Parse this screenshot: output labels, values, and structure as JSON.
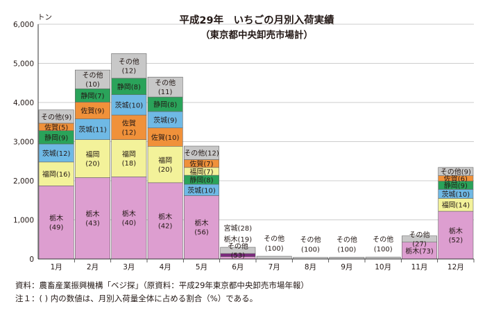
{
  "chart_data": {
    "type": "bar",
    "stacked": true,
    "title": "平成29年　いちごの月別入荷実績",
    "subtitle": "（東京都中央卸売市場計）",
    "ylabel": "トン",
    "xlabel": "",
    "ylim": [
      0,
      6000
    ],
    "yticks": [
      "0",
      "1,000",
      "2,000",
      "3,000",
      "4,000",
      "5,000",
      "6,000"
    ],
    "grid": true,
    "colors": {
      "栃木": "#dd9ed0",
      "福岡": "#f3f29a",
      "茨城": "#6fb9e5",
      "静岡": "#2aa35a",
      "佐賀": "#f0913a",
      "宮城": "#7b2a7e",
      "その他": "#c8c8c8"
    },
    "categories": [
      "1月",
      "2月",
      "3月",
      "4月",
      "5月",
      "6月",
      "7月",
      "8月",
      "9月",
      "10月",
      "11月",
      "12月"
    ],
    "stacks": [
      {
        "month": "1月",
        "segments": [
          {
            "name": "栃木",
            "value": 1870,
            "label": [
              "栃木",
              "(49)"
            ]
          },
          {
            "name": "福岡",
            "value": 610,
            "label": [
              "福岡(16)"
            ]
          },
          {
            "name": "茨城",
            "value": 460,
            "label": [
              "茨城(12)"
            ]
          },
          {
            "name": "静岡",
            "value": 340,
            "label": [
              "静岡(9)"
            ]
          },
          {
            "name": "佐賀",
            "value": 190,
            "label": [
              "佐賀(5)"
            ]
          },
          {
            "name": "その他",
            "value": 340,
            "label": [
              "その他(9)"
            ]
          }
        ]
      },
      {
        "month": "2月",
        "segments": [
          {
            "name": "栃木",
            "value": 2080,
            "label": [
              "栃木",
              "(43)"
            ]
          },
          {
            "name": "福岡",
            "value": 970,
            "label": [
              "福岡",
              "(20)"
            ]
          },
          {
            "name": "茨城",
            "value": 530,
            "label": [
              "茨城(11)"
            ]
          },
          {
            "name": "佐賀",
            "value": 430,
            "label": [
              "佐賀(9)"
            ]
          },
          {
            "name": "静岡",
            "value": 340,
            "label": [
              "静岡(7)"
            ]
          },
          {
            "name": "その他",
            "value": 480,
            "label": [
              "その他",
              "(10)"
            ]
          }
        ]
      },
      {
        "month": "3月",
        "segments": [
          {
            "name": "栃木",
            "value": 2100,
            "label": [
              "栃木",
              "(40)"
            ]
          },
          {
            "name": "福岡",
            "value": 950,
            "label": [
              "福岡",
              "(18)"
            ]
          },
          {
            "name": "佐賀",
            "value": 630,
            "label": [
              "佐賀",
              "(12)"
            ]
          },
          {
            "name": "茨城",
            "value": 520,
            "label": [
              "茨城(10)"
            ]
          },
          {
            "name": "静岡",
            "value": 420,
            "label": [
              "静岡(8)"
            ]
          },
          {
            "name": "その他",
            "value": 630,
            "label": [
              "その他",
              "(12)"
            ]
          }
        ]
      },
      {
        "month": "4月",
        "segments": [
          {
            "name": "栃木",
            "value": 1950,
            "label": [
              "栃木",
              "(42)"
            ]
          },
          {
            "name": "福岡",
            "value": 930,
            "label": [
              "福岡",
              "(20)"
            ]
          },
          {
            "name": "佐賀",
            "value": 470,
            "label": [
              "佐賀(10)"
            ]
          },
          {
            "name": "茨城",
            "value": 420,
            "label": [
              "茨城(9)"
            ]
          },
          {
            "name": "静岡",
            "value": 370,
            "label": [
              "静岡(8)"
            ]
          },
          {
            "name": "その他",
            "value": 510,
            "label": [
              "その他",
              "(11)"
            ]
          }
        ]
      },
      {
        "month": "5月",
        "segments": [
          {
            "name": "栃木",
            "value": 1620,
            "label": [
              "栃木",
              "(56)"
            ]
          },
          {
            "name": "茨城",
            "value": 290,
            "label": [
              "茨城(10)"
            ]
          },
          {
            "name": "静岡",
            "value": 230,
            "label": [
              "静岡(8)"
            ]
          },
          {
            "name": "福岡",
            "value": 200,
            "label": [
              "福岡(7)"
            ]
          },
          {
            "name": "佐賀",
            "value": 200,
            "label": [
              "佐賀(7)"
            ]
          },
          {
            "name": "その他",
            "value": 345,
            "label": [
              "その他(12)"
            ]
          }
        ]
      },
      {
        "month": "6月",
        "segments": [
          {
            "name": "栃木",
            "value": 60,
            "label": [
              "栃木(19)"
            ]
          },
          {
            "name": "宮城",
            "value": 80,
            "label": [
              "宮城(28)"
            ]
          },
          {
            "name": "その他",
            "value": 160,
            "label": [
              "その他",
              "(53)"
            ]
          }
        ]
      },
      {
        "month": "7月",
        "segments": [
          {
            "name": "その他",
            "value": 70,
            "label": [
              "その他",
              "(100)"
            ]
          }
        ]
      },
      {
        "month": "8月",
        "segments": [
          {
            "name": "その他",
            "value": 40,
            "label": [
              "その他",
              "(100)"
            ]
          }
        ]
      },
      {
        "month": "9月",
        "segments": [
          {
            "name": "その他",
            "value": 45,
            "label": [
              "その他",
              "(100)"
            ]
          }
        ]
      },
      {
        "month": "10月",
        "segments": [
          {
            "name": "その他",
            "value": 50,
            "label": [
              "その他",
              "(100)"
            ]
          }
        ]
      },
      {
        "month": "11月",
        "segments": [
          {
            "name": "栃木",
            "value": 430,
            "label": [
              "栃木(73)"
            ]
          },
          {
            "name": "その他",
            "value": 160,
            "label": [
              "その他",
              "(27)"
            ]
          }
        ]
      },
      {
        "month": "12月",
        "segments": [
          {
            "name": "栃木",
            "value": 1220,
            "label": [
              "栃木",
              "(52)"
            ]
          },
          {
            "name": "福岡",
            "value": 330,
            "label": [
              "福岡(14)"
            ]
          },
          {
            "name": "茨城",
            "value": 230,
            "label": [
              "茨城(10)"
            ]
          },
          {
            "name": "静岡",
            "value": 210,
            "label": [
              "静岡(9)"
            ]
          },
          {
            "name": "佐賀",
            "value": 140,
            "label": [
              "佐賀(6)"
            ]
          },
          {
            "name": "その他",
            "value": 210,
            "label": [
              "その他(9)"
            ]
          }
        ]
      }
    ]
  },
  "notes": {
    "source": "資料：農畜産業振興機構「ベジ探」（原資料：平成29年東京都中央卸売市場年報）",
    "note1": "注１：(  ) 内の数値は、月別入荷量全体に占める割合（%）である。"
  }
}
